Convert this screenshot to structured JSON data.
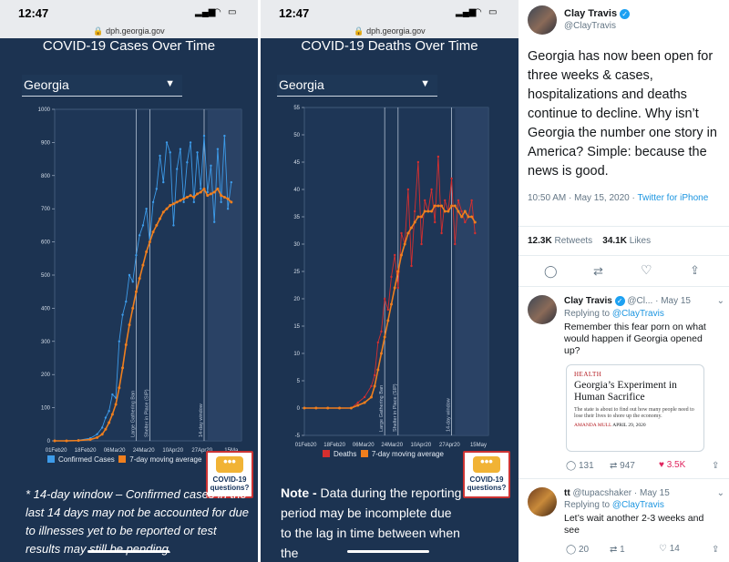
{
  "phone1": {
    "time": "12:47",
    "url": "dph.georgia.gov",
    "title": "COVID-19 Cases Over Time",
    "selected_state": "Georgia",
    "legend": [
      "Confirmed Cases",
      "7-day moving average"
    ],
    "note": "* 14-day window – Confirmed cases in the last 14 days may not be accounted for due to illnesses yet to be reported or test results may still be pending.",
    "help_button": "COVID-19 questions?"
  },
  "phone2": {
    "time": "12:47",
    "url": "dph.georgia.gov",
    "title": "COVID-19 Deaths Over Time",
    "selected_state": "Georgia",
    "legend": [
      "Deaths",
      "7-day moving average"
    ],
    "note_bold": "Note -",
    "note": " Data during the reporting period may be incomplete due to the lag in time between when the",
    "help_button": "COVID-19 questions?"
  },
  "colors": {
    "page_bg": "#1c3351",
    "daily": "#3d9be9",
    "avg": "#f07f1e",
    "deaths": "#d62f2f",
    "twitter_blue": "#1da1f2",
    "like_red": "#e0245e"
  },
  "chart_data": [
    {
      "type": "line",
      "title": "COVID-19 Cases Over Time",
      "x_ticks": [
        "01Feb20",
        "18Feb20",
        "06Mar20",
        "24Mar20",
        "10Apr20",
        "27Apr20",
        "15Ma"
      ],
      "ylim": [
        0,
        1000
      ],
      "y_ticks": [
        0,
        100,
        200,
        300,
        400,
        500,
        600,
        700,
        800,
        900,
        1000
      ],
      "annotations": [
        "Large Gathering Ban",
        "Shelter in Place (SIP)",
        "14-day window"
      ],
      "series": [
        {
          "name": "Confirmed Cases",
          "x": [
            0,
            7,
            14,
            21,
            25,
            28,
            30,
            32,
            34,
            36,
            38,
            40,
            42,
            44,
            46,
            48,
            50,
            52,
            54,
            56,
            58,
            60,
            62,
            64,
            66,
            68,
            70,
            72,
            74,
            76,
            78,
            80,
            82,
            84,
            86,
            88,
            90,
            92,
            94,
            96,
            98,
            100,
            102,
            104
          ],
          "values": [
            0,
            0,
            2,
            8,
            20,
            40,
            70,
            90,
            140,
            130,
            300,
            380,
            420,
            500,
            480,
            560,
            620,
            650,
            700,
            600,
            720,
            760,
            860,
            780,
            900,
            870,
            650,
            820,
            880,
            720,
            840,
            900,
            720,
            870,
            760,
            920,
            750,
            830,
            660,
            880,
            720,
            920,
            700,
            780
          ]
        },
        {
          "name": "7-day moving average",
          "x": [
            0,
            7,
            14,
            21,
            25,
            28,
            30,
            32,
            34,
            36,
            38,
            40,
            42,
            44,
            46,
            48,
            50,
            52,
            54,
            56,
            58,
            60,
            62,
            64,
            66,
            68,
            70,
            72,
            74,
            76,
            78,
            80,
            82,
            84,
            86,
            88,
            90,
            92,
            94,
            96,
            98,
            100,
            102,
            104
          ],
          "values": [
            0,
            0,
            1,
            4,
            10,
            20,
            35,
            55,
            80,
            110,
            160,
            220,
            290,
            350,
            400,
            450,
            490,
            530,
            570,
            600,
            630,
            650,
            670,
            690,
            700,
            710,
            715,
            720,
            725,
            730,
            735,
            740,
            735,
            745,
            750,
            760,
            740,
            745,
            750,
            760,
            740,
            735,
            730,
            720
          ]
        }
      ]
    },
    {
      "type": "line",
      "title": "COVID-19 Deaths Over Time",
      "x_ticks": [
        "01Feb20",
        "18Feb20",
        "06Mar20",
        "24Mar20",
        "10Apr20",
        "27Apr20",
        "15May"
      ],
      "ylim": [
        -5,
        55
      ],
      "y_ticks": [
        -5,
        0,
        5,
        10,
        15,
        20,
        25,
        30,
        35,
        40,
        45,
        50,
        55
      ],
      "annotations": [
        "Large Gathering Ban",
        "Shelter in Place (SIP)",
        "14-day window"
      ],
      "series": [
        {
          "name": "Deaths",
          "x": [
            0,
            7,
            14,
            21,
            28,
            32,
            36,
            40,
            42,
            44,
            46,
            48,
            50,
            52,
            54,
            56,
            58,
            60,
            62,
            64,
            66,
            68,
            70,
            72,
            74,
            76,
            78,
            80,
            82,
            84,
            86,
            88,
            90,
            92,
            94,
            96,
            98,
            100,
            102
          ],
          "values": [
            0,
            0,
            0,
            0,
            0,
            1,
            2,
            4,
            6,
            12,
            14,
            20,
            18,
            24,
            28,
            22,
            32,
            30,
            40,
            26,
            36,
            45,
            30,
            38,
            36,
            40,
            34,
            46,
            32,
            38,
            36,
            42,
            30,
            38,
            36,
            34,
            35,
            38,
            32
          ]
        },
        {
          "name": "7-day moving average",
          "x": [
            0,
            7,
            14,
            21,
            28,
            32,
            36,
            40,
            42,
            44,
            46,
            48,
            50,
            52,
            54,
            56,
            58,
            60,
            62,
            64,
            66,
            68,
            70,
            72,
            74,
            76,
            78,
            80,
            82,
            84,
            86,
            88,
            90,
            92,
            94,
            96,
            98,
            100,
            102
          ],
          "values": [
            0,
            0,
            0,
            0,
            0,
            0.5,
            1,
            2,
            4,
            7,
            10,
            13,
            16,
            19,
            22,
            25,
            28,
            30,
            32,
            33,
            34,
            35,
            35,
            36,
            36,
            36,
            37,
            37,
            37,
            36,
            36,
            37,
            37,
            36,
            35,
            36,
            35,
            35,
            34
          ]
        }
      ]
    }
  ],
  "tweet": {
    "author": "Clay Travis",
    "handle": "@ClayTravis",
    "text": "Georgia has now been open for three weeks & cases, hospitalizations and deaths continue to decline. Why isn’t Georgia the number one story in America? Simple: because the news is good.",
    "timestamp": "10:50 AM · May 15, 2020",
    "source": "Twitter for iPhone",
    "retweets": "12.3K",
    "retweets_label": "Retweets",
    "likes": "34.1K",
    "likes_label": "Likes"
  },
  "reply1": {
    "author": "Clay Travis",
    "handle_short": "@Cl...",
    "date": "· May 15",
    "replying_to": "Replying to ",
    "replying_handle": "@ClayTravis",
    "text": "Remember this fear porn on what would happen if Georgia opened up?",
    "card_brand": "HEALTH",
    "card_title": "Georgia’s Experiment in Human Sacrifice",
    "card_sub": "The state is about to find out how many people need to lose their lives to shore up the economy.",
    "card_author": "AMANDA MULL",
    "card_date": "APRIL 29, 2020",
    "replies": "131",
    "retweets": "947",
    "likes": "3.5K"
  },
  "reply2": {
    "author": "tt",
    "handle": "@tupacshaker",
    "date": "· May 15",
    "replying_to": "Replying to ",
    "replying_handle": "@ClayTravis",
    "text": "Let’s wait another 2-3 weeks and see",
    "replies": "20",
    "retweets": "1",
    "likes": "14"
  }
}
